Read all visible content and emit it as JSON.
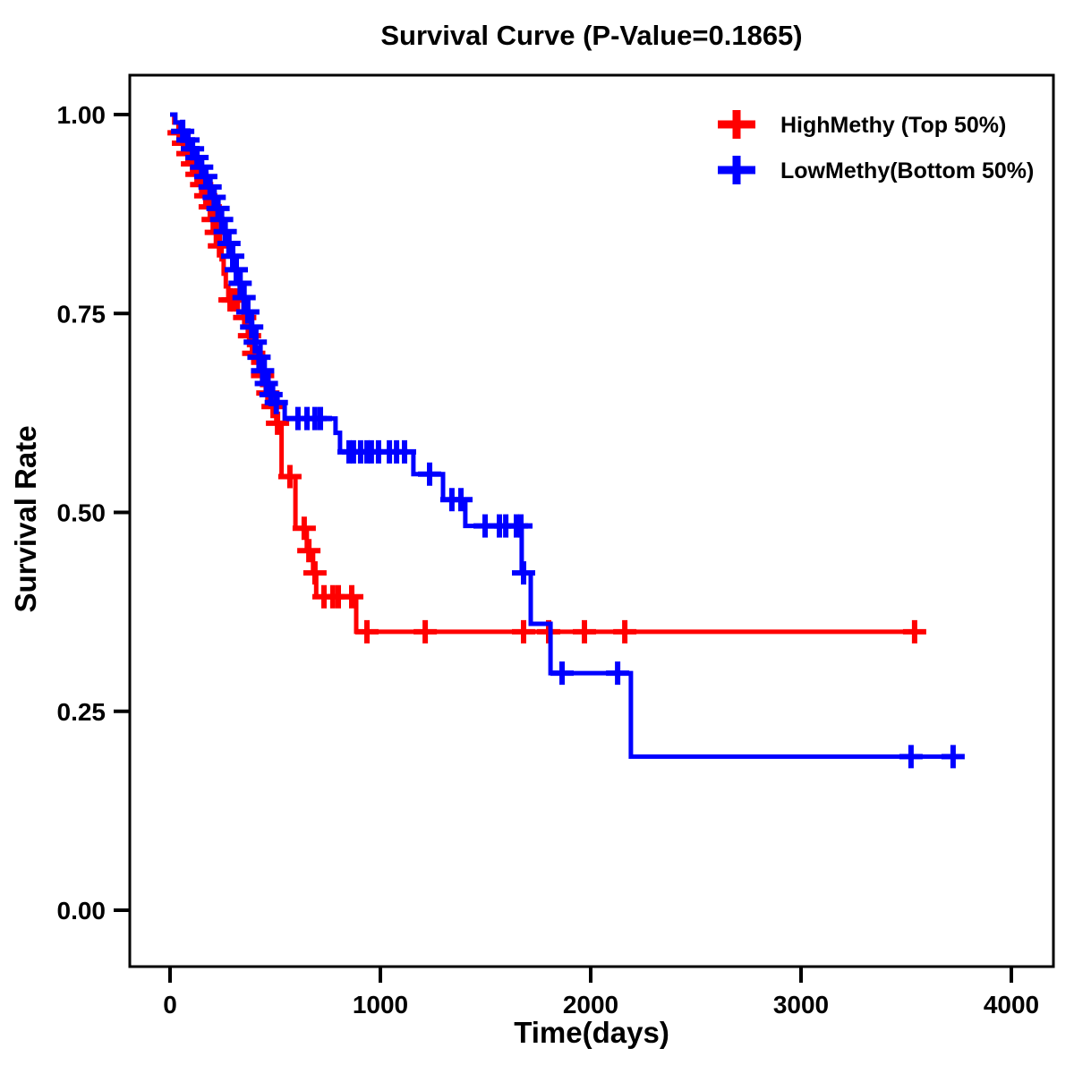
{
  "title": "Survival Curve (P-Value=0.1865)",
  "chart_data": {
    "type": "line",
    "subtype": "kaplan-meier-step",
    "title": "Survival Curve (P-Value=0.1865)",
    "p_value": "0.1865",
    "xlabel": "Time(days)",
    "ylabel": "Survival Rate",
    "xlim": [
      0,
      4000
    ],
    "ylim": [
      0.0,
      1.0
    ],
    "grid": "off",
    "legend_position": "top-right-inside",
    "x_ticks": [
      {
        "value": 0,
        "label": "0"
      },
      {
        "value": 1000,
        "label": "1000"
      },
      {
        "value": 2000,
        "label": "2000"
      },
      {
        "value": 3000,
        "label": "3000"
      },
      {
        "value": 4000,
        "label": "4000"
      }
    ],
    "y_ticks": [
      {
        "value": 0.0,
        "label": "0.00"
      },
      {
        "value": 0.25,
        "label": "0.25"
      },
      {
        "value": 0.5,
        "label": "0.50"
      },
      {
        "value": 0.75,
        "label": "0.75"
      },
      {
        "value": 1.0,
        "label": "1.00"
      }
    ],
    "series": [
      {
        "name": "HighMethy (Top 50%)",
        "color": "#FF0000",
        "steps": [
          [
            0,
            1.0
          ],
          [
            20,
            0.99
          ],
          [
            40,
            0.977
          ],
          [
            60,
            0.964
          ],
          [
            80,
            0.951
          ],
          [
            100,
            0.938
          ],
          [
            120,
            0.925
          ],
          [
            140,
            0.912
          ],
          [
            160,
            0.898
          ],
          [
            180,
            0.884
          ],
          [
            200,
            0.868
          ],
          [
            213,
            0.852
          ],
          [
            230,
            0.835
          ],
          [
            245,
            0.818
          ],
          [
            255,
            0.8
          ],
          [
            265,
            0.784
          ],
          [
            277,
            0.767
          ],
          [
            349,
            0.745
          ],
          [
            370,
            0.722
          ],
          [
            390,
            0.7
          ],
          [
            430,
            0.672
          ],
          [
            455,
            0.65
          ],
          [
            480,
            0.633
          ],
          [
            505,
            0.612
          ],
          [
            530,
            0.545
          ],
          [
            596,
            0.48
          ],
          [
            650,
            0.452
          ],
          [
            680,
            0.424
          ],
          [
            695,
            0.394
          ],
          [
            885,
            0.35
          ],
          [
            3540,
            0.35
          ]
        ],
        "censors": [
          [
            43,
            0.977
          ],
          [
            64,
            0.964
          ],
          [
            85,
            0.951
          ],
          [
            107,
            0.938
          ],
          [
            128,
            0.925
          ],
          [
            150,
            0.912
          ],
          [
            170,
            0.898
          ],
          [
            191,
            0.884
          ],
          [
            205,
            0.868
          ],
          [
            220,
            0.852
          ],
          [
            235,
            0.835
          ],
          [
            285,
            0.767
          ],
          [
            300,
            0.767
          ],
          [
            320,
            0.767
          ],
          [
            355,
            0.745
          ],
          [
            378,
            0.722
          ],
          [
            398,
            0.7
          ],
          [
            440,
            0.672
          ],
          [
            465,
            0.65
          ],
          [
            490,
            0.633
          ],
          [
            511,
            0.612
          ],
          [
            570,
            0.545
          ],
          [
            638,
            0.48
          ],
          [
            660,
            0.452
          ],
          [
            689,
            0.424
          ],
          [
            732,
            0.394
          ],
          [
            774,
            0.394
          ],
          [
            800,
            0.394
          ],
          [
            864,
            0.394
          ],
          [
            936,
            0.35
          ],
          [
            1213,
            0.35
          ],
          [
            1681,
            0.35
          ],
          [
            1800,
            0.35
          ],
          [
            1970,
            0.35
          ],
          [
            2162,
            0.35
          ],
          [
            3540,
            0.35
          ]
        ]
      },
      {
        "name": "LowMethy(Bottom 50%)",
        "color": "#0000FF",
        "steps": [
          [
            0,
            1.0
          ],
          [
            25,
            0.99
          ],
          [
            50,
            0.979
          ],
          [
            70,
            0.968
          ],
          [
            90,
            0.957
          ],
          [
            110,
            0.946
          ],
          [
            130,
            0.934
          ],
          [
            150,
            0.922
          ],
          [
            170,
            0.909
          ],
          [
            190,
            0.896
          ],
          [
            210,
            0.882
          ],
          [
            230,
            0.868
          ],
          [
            250,
            0.853
          ],
          [
            270,
            0.838
          ],
          [
            290,
            0.822
          ],
          [
            310,
            0.805
          ],
          [
            330,
            0.788
          ],
          [
            350,
            0.77
          ],
          [
            370,
            0.752
          ],
          [
            390,
            0.733
          ],
          [
            410,
            0.714
          ],
          [
            430,
            0.695
          ],
          [
            450,
            0.678
          ],
          [
            468,
            0.662
          ],
          [
            490,
            0.648
          ],
          [
            511,
            0.638
          ],
          [
            545,
            0.618
          ],
          [
            787,
            0.6
          ],
          [
            808,
            0.576
          ],
          [
            1157,
            0.548
          ],
          [
            1298,
            0.516
          ],
          [
            1404,
            0.483
          ],
          [
            1672,
            0.424
          ],
          [
            1715,
            0.36
          ],
          [
            1809,
            0.298
          ],
          [
            2191,
            0.193
          ],
          [
            3750,
            0.193
          ]
        ],
        "censors": [
          [
            60,
            0.979
          ],
          [
            85,
            0.968
          ],
          [
            107,
            0.957
          ],
          [
            128,
            0.946
          ],
          [
            150,
            0.934
          ],
          [
            170,
            0.922
          ],
          [
            190,
            0.909
          ],
          [
            210,
            0.896
          ],
          [
            228,
            0.882
          ],
          [
            245,
            0.868
          ],
          [
            262,
            0.853
          ],
          [
            280,
            0.838
          ],
          [
            298,
            0.822
          ],
          [
            315,
            0.805
          ],
          [
            333,
            0.788
          ],
          [
            352,
            0.77
          ],
          [
            370,
            0.752
          ],
          [
            388,
            0.733
          ],
          [
            405,
            0.714
          ],
          [
            423,
            0.695
          ],
          [
            440,
            0.678
          ],
          [
            458,
            0.662
          ],
          [
            480,
            0.648
          ],
          [
            505,
            0.638
          ],
          [
            608,
            0.618
          ],
          [
            651,
            0.618
          ],
          [
            689,
            0.618
          ],
          [
            715,
            0.618
          ],
          [
            851,
            0.576
          ],
          [
            872,
            0.576
          ],
          [
            906,
            0.576
          ],
          [
            936,
            0.576
          ],
          [
            957,
            0.576
          ],
          [
            991,
            0.576
          ],
          [
            1043,
            0.576
          ],
          [
            1077,
            0.576
          ],
          [
            1115,
            0.576
          ],
          [
            1234,
            0.548
          ],
          [
            1340,
            0.516
          ],
          [
            1383,
            0.516
          ],
          [
            1498,
            0.483
          ],
          [
            1566,
            0.483
          ],
          [
            1596,
            0.483
          ],
          [
            1647,
            0.483
          ],
          [
            1668,
            0.483
          ],
          [
            1681,
            0.424
          ],
          [
            1864,
            0.298
          ],
          [
            2128,
            0.298
          ],
          [
            3523,
            0.193
          ],
          [
            3723,
            0.193
          ]
        ]
      }
    ]
  },
  "colors": {
    "high_methy": "#FF0000",
    "low_methy": "#0000FF",
    "frame": "#000000",
    "text": "#000000",
    "background": "#FFFFFF"
  }
}
